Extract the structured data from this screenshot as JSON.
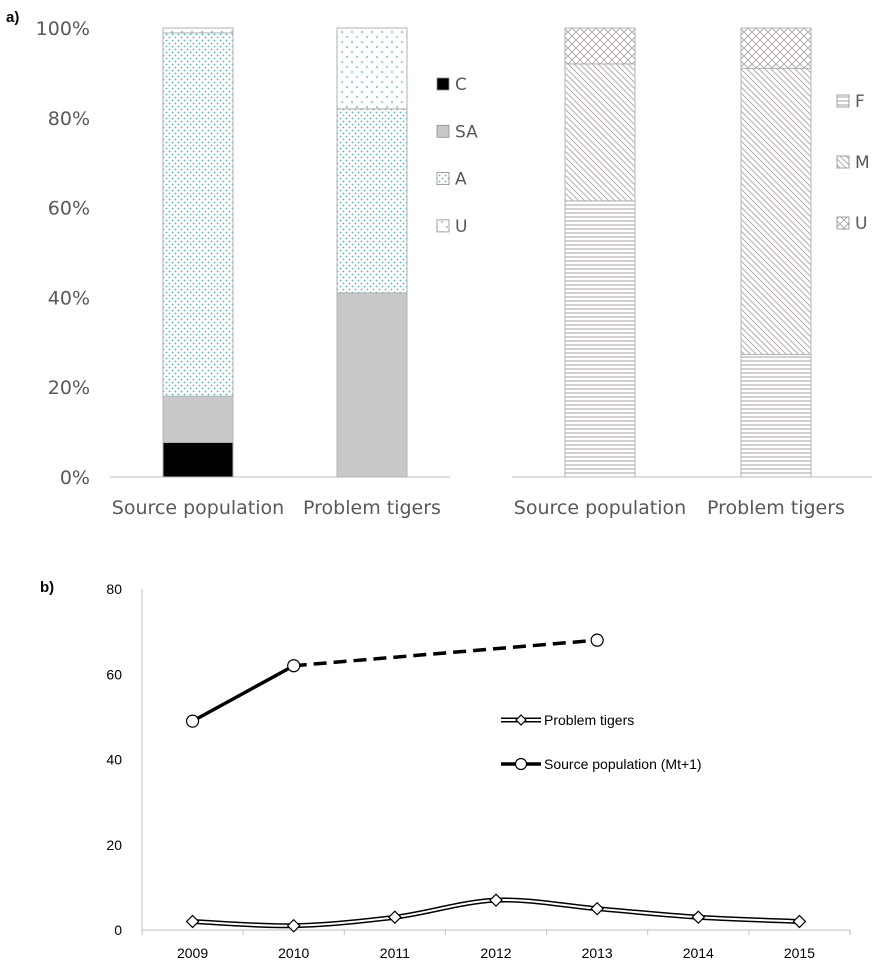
{
  "panel_labels": {
    "a": "a)",
    "b": "b)"
  },
  "colors": {
    "C": "#000000",
    "SA": "#c8c8c8",
    "A_dots": "#4fb3b3",
    "U_dots": "#4fb3b3",
    "sex_lines": "#a89f9f",
    "bar_border": "#b3b3b3",
    "axis": "#bfbfbf"
  },
  "chart_data": [
    {
      "type": "bar",
      "stacked": true,
      "percent": true,
      "ylim": [
        0,
        100
      ],
      "yticks": [
        "0%",
        "20%",
        "40%",
        "60%",
        "80%",
        "100%"
      ],
      "categories": [
        "Source population",
        "Problem tigers"
      ],
      "series": [
        {
          "name": "C",
          "values": [
            7.7,
            0
          ]
        },
        {
          "name": "SA",
          "values": [
            10.3,
            41
          ]
        },
        {
          "name": "A",
          "values": [
            80.9,
            41
          ]
        },
        {
          "name": "U",
          "values": [
            1.1,
            18
          ]
        }
      ],
      "legend_order": [
        "C",
        "SA",
        "A",
        "U"
      ],
      "legend": "right"
    },
    {
      "type": "bar",
      "stacked": true,
      "percent": true,
      "ylim": [
        0,
        100
      ],
      "categories": [
        "Source population",
        "Problem tigers"
      ],
      "series": [
        {
          "name": "F",
          "values": [
            61.5,
            27.3
          ]
        },
        {
          "name": "M",
          "values": [
            30.5,
            63.7
          ]
        },
        {
          "name": "U",
          "values": [
            8,
            9
          ]
        }
      ],
      "legend_order": [
        "F",
        "M",
        "U"
      ],
      "legend": "right"
    },
    {
      "type": "line",
      "x": [
        2009,
        2010,
        2011,
        2012,
        2013,
        2014,
        2015
      ],
      "xticks": [
        "2009",
        "2010",
        "2011",
        "2012",
        "2013",
        "2014",
        "2015"
      ],
      "ylim": [
        0,
        80
      ],
      "yticks": [
        "0",
        "20",
        "40",
        "60",
        "80"
      ],
      "series": [
        {
          "name": "Problem tigers",
          "marker": "diamond",
          "x": [
            2009,
            2010,
            2011,
            2012,
            2013,
            2014,
            2015
          ],
          "values": [
            2,
            1,
            3,
            7,
            5,
            3,
            2
          ]
        },
        {
          "name": "Source population (Mt+1)",
          "marker": "circle",
          "x": [
            2009,
            2010,
            2013
          ],
          "values": [
            49,
            62,
            68
          ],
          "dashed_from_index": 1
        }
      ],
      "legend": "center-right",
      "grid": false
    }
  ]
}
